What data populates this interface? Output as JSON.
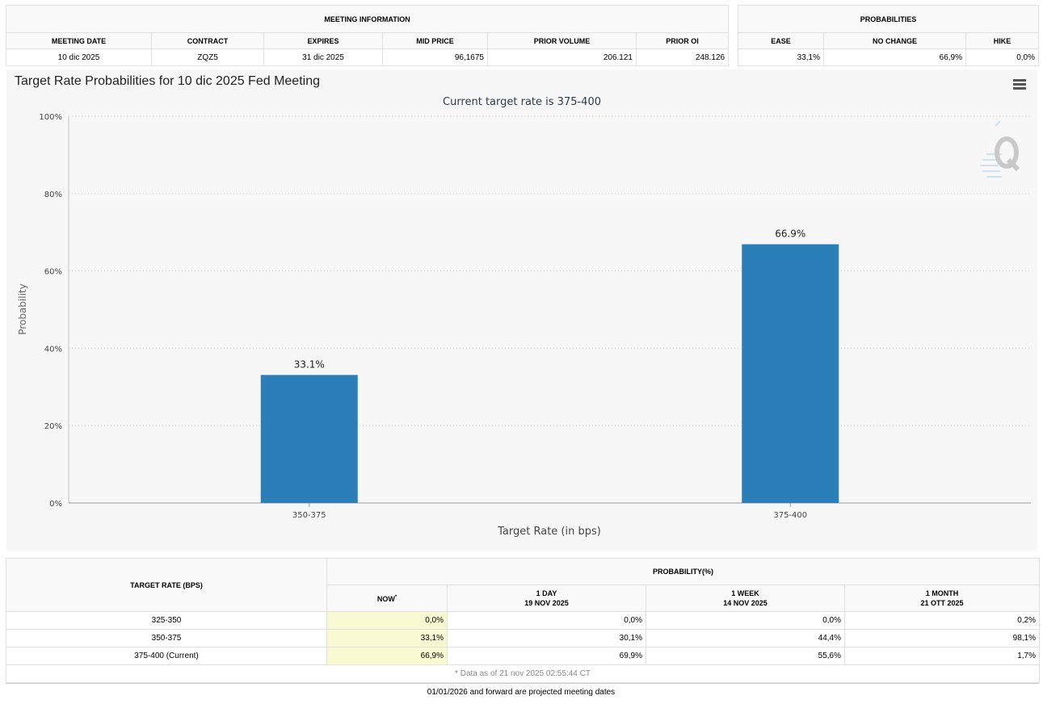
{
  "meeting_info": {
    "header": "MEETING INFORMATION",
    "columns": [
      "MEETING DATE",
      "CONTRACT",
      "EXPIRES",
      "MID PRICE",
      "PRIOR VOLUME",
      "PRIOR OI"
    ],
    "values": [
      "10 dic 2025",
      "ZQZ5",
      "31 dic 2025",
      "96,1675",
      "206.121",
      "248.126"
    ]
  },
  "probabilities": {
    "header": "PROBABILITIES",
    "columns": [
      "EASE",
      "NO CHANGE",
      "HIKE"
    ],
    "values": [
      "33,1%",
      "66,9%",
      "0,0%"
    ]
  },
  "chart_data": {
    "type": "bar",
    "title": "Target Rate Probabilities for 10 dic 2025 Fed Meeting",
    "subtitle": "Current target rate is 375-400",
    "xlabel": "Target Rate (in bps)",
    "ylabel": "Probability",
    "categories": [
      "350-375",
      "375-400"
    ],
    "values": [
      33.1,
      66.9
    ],
    "data_labels": [
      "33.1%",
      "66.9%"
    ],
    "ylim": [
      0,
      100
    ],
    "yticks": [
      0,
      20,
      40,
      60,
      80,
      100
    ],
    "ytick_labels": [
      "0%",
      "20%",
      "40%",
      "60%",
      "80%",
      "100%"
    ],
    "grid": true,
    "bar_color": "#2a7fb8"
  },
  "history_table": {
    "target_rate_header": "TARGET RATE (BPS)",
    "probability_header": "PROBABILITY(%)",
    "periods": [
      {
        "label": "NOW",
        "date": ""
      },
      {
        "label": "1 DAY",
        "date": "19 NOV 2025"
      },
      {
        "label": "1 WEEK",
        "date": "14 NOV 2025"
      },
      {
        "label": "1 MONTH",
        "date": "21 OTT 2025"
      }
    ],
    "rows": [
      {
        "rate": "325-350",
        "values": [
          "0,0%",
          "0,0%",
          "0,0%",
          "0,2%"
        ]
      },
      {
        "rate": "350-375",
        "values": [
          "33,1%",
          "30,1%",
          "44,4%",
          "98,1%"
        ]
      },
      {
        "rate": "375-400 (Current)",
        "values": [
          "66,9%",
          "69,9%",
          "55,6%",
          "1,7%"
        ]
      }
    ],
    "data_note": "* Data as of 21 nov 2025 02:55:44 CT"
  },
  "projected_note": "01/01/2026 and forward are projected meeting dates"
}
